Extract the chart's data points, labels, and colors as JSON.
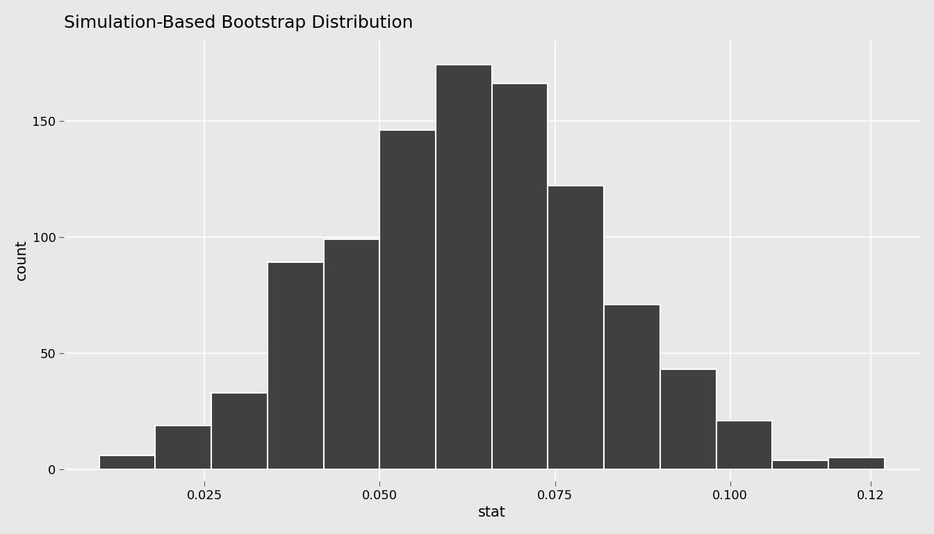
{
  "title": "Simulation-Based Bootstrap Distribution",
  "xlabel": "stat",
  "ylabel": "count",
  "outer_background_color": "#E8E8E8",
  "plot_background_color": "#E8E8E8",
  "bar_color": "#404040",
  "bar_edge_color": "white",
  "bin_edges": [
    0.01,
    0.018,
    0.026,
    0.034,
    0.042,
    0.05,
    0.058,
    0.066,
    0.074,
    0.082,
    0.09,
    0.098,
    0.106,
    0.114,
    0.122
  ],
  "bar_heights": [
    6,
    19,
    33,
    89,
    99,
    146,
    174,
    166,
    122,
    71,
    43,
    21,
    4,
    5
  ],
  "xticks": [
    0.025,
    0.05,
    0.075,
    0.1
  ],
  "xtick_labels": [
    "0.025",
    "0.050",
    "0.075",
    "0.100"
  ],
  "xlim": [
    0.005,
    0.127
  ],
  "yticks": [
    0,
    50,
    100,
    150
  ],
  "ylim": [
    -5,
    185
  ],
  "title_fontsize": 18,
  "axis_label_fontsize": 15,
  "tick_fontsize": 13,
  "grid_color": "white",
  "grid_linewidth": 1.2,
  "extra_xtick": 0.12,
  "extra_xtick_label": "0.12"
}
